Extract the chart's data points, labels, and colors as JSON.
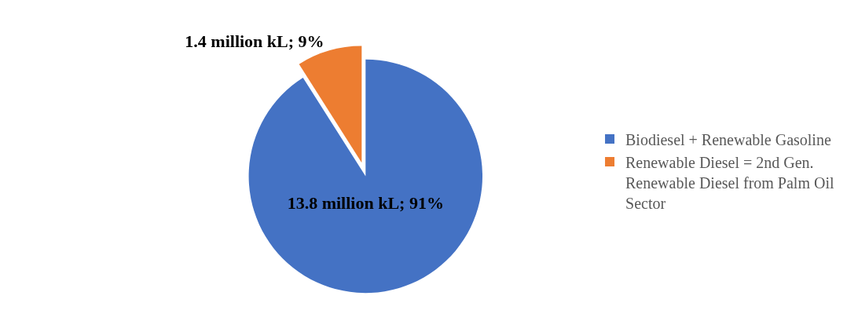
{
  "chart_data": {
    "type": "pie",
    "categories": [
      "Biodiesel + Renewable Gasoline",
      "Renewable Diesel = 2nd Gen. Renewable Diesel from Palm Oil Sector"
    ],
    "values": [
      91,
      9
    ],
    "colors": [
      "#4472c4",
      "#ed7d31"
    ],
    "value_labels": [
      "13.8 million kL; 91%",
      "1.4 million kL; 9%"
    ],
    "legend": "right"
  }
}
